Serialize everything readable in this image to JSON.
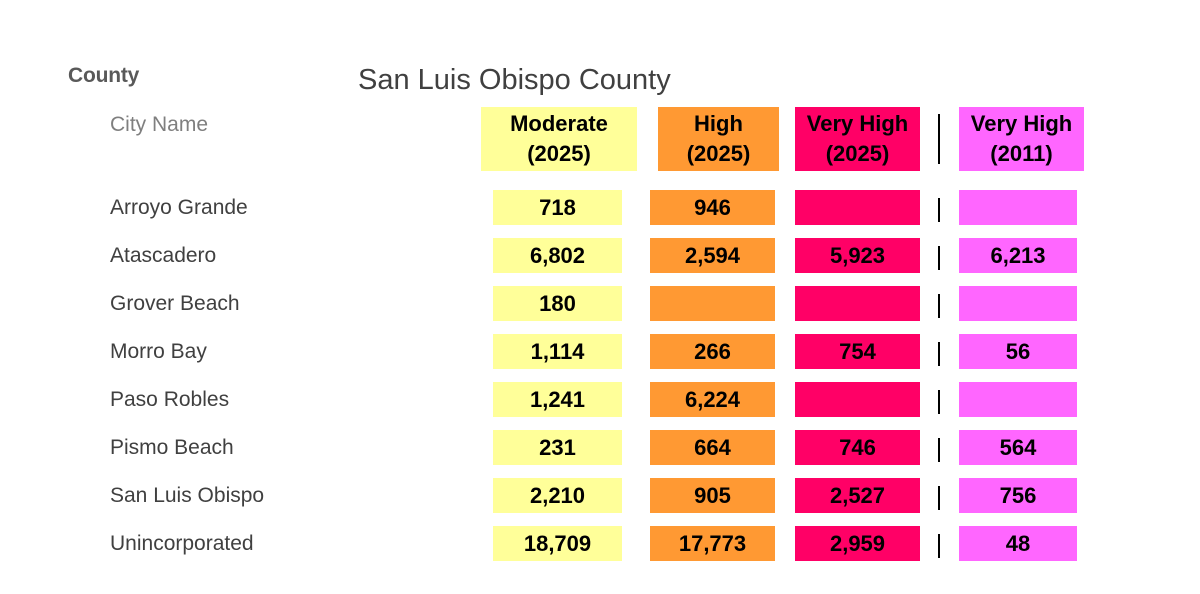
{
  "county_label": "County",
  "city_header": "City Name",
  "colors": {
    "moderate": "#ffff99",
    "high": "#ff9933",
    "very_high_2025": "#ff0066",
    "very_high_2011": "#ff66ff",
    "divider": "#000000"
  },
  "chart_data": {
    "type": "table",
    "title": "San Luis Obispo County",
    "columns": [
      {
        "key": "moderate",
        "line1": "Moderate",
        "line2": "(2025)"
      },
      {
        "key": "high",
        "line1": "High",
        "line2": "(2025)"
      },
      {
        "key": "very_high_2025",
        "line1": "Very High",
        "line2": "(2025)"
      },
      {
        "key": "very_high_2011",
        "line1": "Very High",
        "line2": "(2011)"
      }
    ],
    "rows": [
      {
        "city": "Arroyo Grande",
        "values": [
          "718",
          "946",
          "",
          ""
        ]
      },
      {
        "city": "Atascadero",
        "values": [
          "6,802",
          "2,594",
          "5,923",
          "6,213"
        ]
      },
      {
        "city": "Grover Beach",
        "values": [
          "180",
          "",
          "",
          ""
        ]
      },
      {
        "city": "Morro Bay",
        "values": [
          "1,114",
          "266",
          "754",
          "56"
        ]
      },
      {
        "city": "Paso Robles",
        "values": [
          "1,241",
          "6,224",
          "",
          ""
        ]
      },
      {
        "city": "Pismo Beach",
        "values": [
          "231",
          "664",
          "746",
          "564"
        ]
      },
      {
        "city": "San Luis Obispo",
        "values": [
          "2,210",
          "905",
          "2,527",
          "756"
        ]
      },
      {
        "city": "Unincorporated",
        "values": [
          "18,709",
          "17,773",
          "2,959",
          "48"
        ]
      }
    ]
  }
}
